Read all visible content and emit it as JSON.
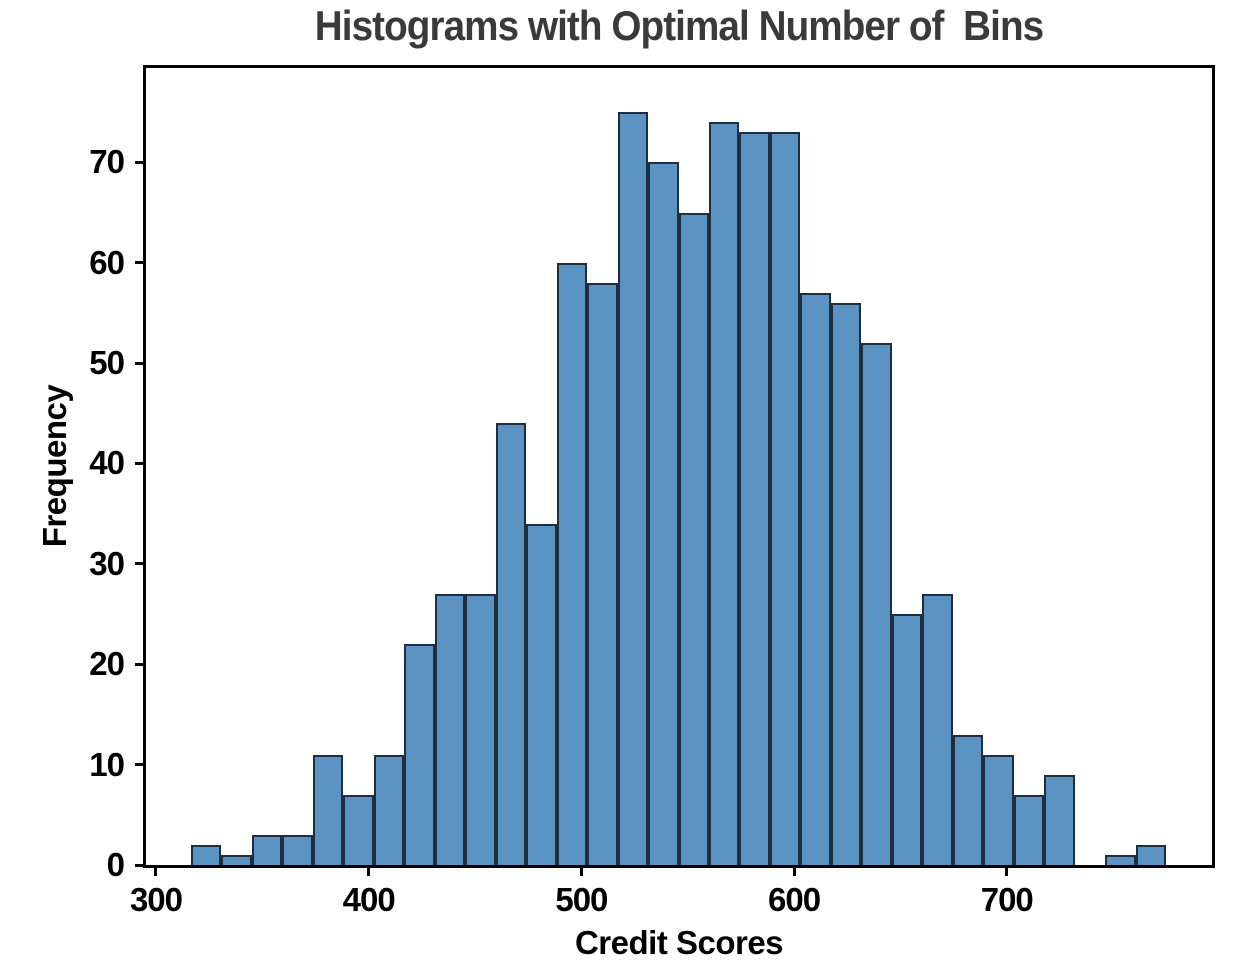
{
  "chart_data": {
    "type": "bar",
    "subtype": "histogram",
    "title": "Histograms with Optimal Number of  Bins",
    "xlabel": "Credit Scores",
    "ylabel": "Frequency",
    "bin_start": 316.4,
    "bin_width": 14.33,
    "counts": [
      2,
      1,
      3,
      3,
      11,
      7,
      11,
      22,
      27,
      27,
      44,
      34,
      60,
      58,
      75,
      70,
      65,
      74,
      73,
      73,
      57,
      56,
      52,
      25,
      27,
      13,
      11,
      7,
      9,
      0,
      1,
      2
    ],
    "bin_edges_approx": [
      316.4,
      330.7,
      345.1,
      359.4,
      373.7,
      388.1,
      402.4,
      416.7,
      431.1,
      445.4,
      459.7,
      474.1,
      488.4,
      502.7,
      517.1,
      531.4,
      545.8,
      560.1,
      574.4,
      588.8,
      603.1,
      617.4,
      631.8,
      646.1,
      660.4,
      674.8,
      689.1,
      703.4,
      717.8,
      732.1,
      746.4,
      760.8,
      775.1
    ],
    "xticks": [
      300,
      400,
      500,
      600,
      700
    ],
    "yticks": [
      0,
      10,
      20,
      30,
      40,
      50,
      60,
      70
    ],
    "xlim": [
      295.3,
      796.5
    ],
    "ylim": [
      0,
      79.4
    ],
    "grid": false,
    "legend": null,
    "colors": {
      "bar_fill": "#5b93c2",
      "bar_edge": "#1f2e3e",
      "axis": "#000000",
      "title_text": "#3a3a3a",
      "tick_text": "#000000",
      "background": "#ffffff"
    }
  }
}
